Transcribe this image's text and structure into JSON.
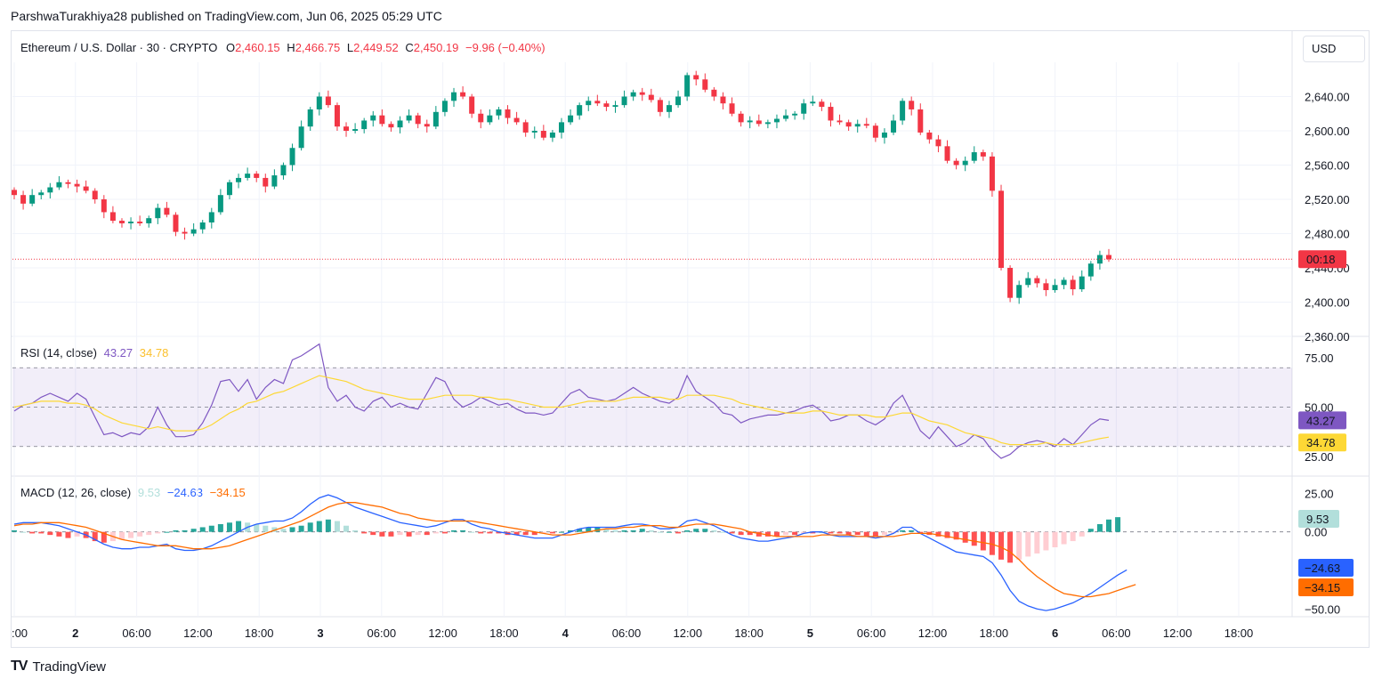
{
  "publisher_line": "ParshwaTurakhiya28 published on TradingView.com, Jun 06, 2025 05:29 UTC",
  "currency_button": "USD",
  "footer": {
    "logo": "TV",
    "brand": "TradingView"
  },
  "legend": {
    "symbol": "Ethereum / U.S. Dollar · 30 · CRYPTO",
    "open_label": "O",
    "open": "2,460.15",
    "high_label": "H",
    "high": "2,466.75",
    "low_label": "L",
    "low": "2,449.52",
    "close_label": "C",
    "close": "2,450.19",
    "change": "−9.96 (−0.40%)"
  },
  "price_tag": "00:18",
  "rsi_legend": {
    "title": "RSI (14, close)",
    "rsi": "43.27",
    "ma": "34.78"
  },
  "macd_legend": {
    "title": "MACD (12, 26, close)",
    "hist": "9.53",
    "macd": "−24.63",
    "signal": "−34.15"
  },
  "colors": {
    "up": "#089981",
    "down": "#f23645",
    "rsi_line": "#7e57c2",
    "rsi_ma": "#fdd835",
    "macd_line": "#2962ff",
    "signal_line": "#ff6d00",
    "rsi_band": "#7e57c2"
  },
  "chart_data": [
    {
      "type": "candlestick",
      "title": "Ethereum / U.S. Dollar · 30 · CRYPTO",
      "x_ticks": [
        ":00",
        "2",
        "06:00",
        "12:00",
        "18:00",
        "3",
        "06:00",
        "12:00",
        "18:00",
        "4",
        "06:00",
        "12:00",
        "18:00",
        "5",
        "06:00",
        "12:00",
        "18:00",
        "6",
        "06:00",
        "12:00",
        "18:00"
      ],
      "y_ticks": [
        "2,640.00",
        "2,600.00",
        "2,560.00",
        "2,520.00",
        "2,480.00",
        "2,440.00",
        "2,400.00",
        "2,360.00"
      ],
      "ylim": [
        2360,
        2680
      ],
      "last_price": 2450.19,
      "close_path": [
        2525,
        2515,
        2525,
        2528,
        2534,
        2540,
        2538,
        2535,
        2530,
        2520,
        2505,
        2495,
        2492,
        2494,
        2492,
        2498,
        2510,
        2502,
        2482,
        2480,
        2485,
        2493,
        2505,
        2525,
        2540,
        2545,
        2550,
        2545,
        2535,
        2548,
        2560,
        2580,
        2605,
        2625,
        2640,
        2630,
        2605,
        2600,
        2602,
        2612,
        2618,
        2608,
        2604,
        2612,
        2618,
        2608,
        2605,
        2622,
        2635,
        2645,
        2640,
        2620,
        2610,
        2618,
        2625,
        2615,
        2610,
        2598,
        2600,
        2592,
        2598,
        2610,
        2618,
        2630,
        2635,
        2632,
        2628,
        2630,
        2640,
        2645,
        2642,
        2636,
        2622,
        2630,
        2640,
        2665,
        2660,
        2648,
        2640,
        2632,
        2620,
        2610,
        2612,
        2608,
        2610,
        2614,
        2618,
        2620,
        2632,
        2634,
        2628,
        2612,
        2610,
        2605,
        2608,
        2606,
        2592,
        2598,
        2612,
        2635,
        2625,
        2598,
        2590,
        2582,
        2565,
        2560,
        2565,
        2575,
        2570,
        2530,
        2440,
        2405,
        2420,
        2428,
        2422,
        2414,
        2420,
        2426,
        2415,
        2430,
        2445,
        2455,
        2450
      ],
      "down_segments": [
        [
          104,
          112
        ],
        [
          139,
          150
        ],
        [
          174,
          184
        ],
        [
          190,
          207
        ]
      ]
    },
    {
      "type": "line",
      "title": "RSI (14, close)",
      "y_ticks": [
        "75.00",
        "50.00",
        "25.00"
      ],
      "ylim": [
        15,
        85
      ],
      "bands": [
        30,
        50,
        70
      ],
      "series": [
        {
          "name": "RSI",
          "values": [
            48,
            51,
            52,
            55,
            57,
            55,
            53,
            57,
            54,
            45,
            36,
            37,
            35,
            37,
            36,
            40,
            50,
            41,
            35,
            35,
            36,
            42,
            51,
            63,
            64,
            58,
            64,
            54,
            60,
            64,
            62,
            74,
            76,
            79,
            82,
            60,
            53,
            56,
            50,
            48,
            53,
            55,
            50,
            52,
            50,
            49,
            57,
            65,
            63,
            54,
            50,
            52,
            55,
            53,
            51,
            52,
            49,
            47,
            47,
            46,
            47,
            52,
            57,
            59,
            55,
            54,
            53,
            54,
            57,
            60,
            57,
            55,
            53,
            52,
            55,
            66,
            58,
            55,
            52,
            47,
            46,
            42,
            44,
            45,
            46,
            46,
            47,
            48,
            50,
            51,
            48,
            43,
            44,
            46,
            46,
            43,
            41,
            44,
            52,
            56,
            47,
            38,
            34,
            40,
            35,
            30,
            32,
            36,
            34,
            28,
            24,
            26,
            30,
            32,
            33,
            32,
            30,
            34,
            31,
            36,
            41,
            44,
            43.27
          ]
        },
        {
          "name": "RSI-based MA",
          "values": [
            50,
            51,
            52,
            53,
            53,
            53,
            52,
            52,
            51,
            49,
            46,
            44,
            42,
            41,
            40,
            39,
            40,
            39,
            38,
            38,
            38,
            39,
            41,
            44,
            47,
            49,
            52,
            53,
            55,
            57,
            58,
            60,
            62,
            64,
            66,
            65,
            64,
            63,
            61,
            59,
            58,
            57,
            56,
            55,
            54,
            54,
            54,
            55,
            56,
            56,
            56,
            56,
            55,
            55,
            54,
            54,
            53,
            52,
            51,
            50,
            50,
            50,
            51,
            52,
            53,
            53,
            53,
            53,
            54,
            55,
            55,
            55,
            55,
            54,
            54,
            56,
            56,
            56,
            56,
            55,
            54,
            52,
            51,
            50,
            49,
            48,
            47,
            47,
            47,
            48,
            48,
            47,
            46,
            46,
            46,
            46,
            45,
            45,
            46,
            47,
            47,
            45,
            43,
            42,
            41,
            39,
            37,
            36,
            35,
            34,
            32,
            31,
            31,
            31,
            31,
            32,
            31,
            31,
            31,
            32,
            33,
            34,
            34.78
          ]
        }
      ]
    },
    {
      "type": "line+bar",
      "title": "MACD (12, 26, close)",
      "y_ticks": [
        "25.00",
        "0.00",
        "−50.00"
      ],
      "ylim": [
        -55,
        35
      ],
      "series": [
        {
          "name": "Histogram",
          "values": [
            1,
            0,
            -1,
            -1,
            -2,
            -3,
            -4,
            -3,
            -4,
            -6,
            -7,
            -6,
            -5,
            -4,
            -3,
            -2,
            -1,
            0,
            1,
            1,
            2,
            3,
            4,
            5,
            6,
            7,
            6,
            5,
            4,
            3,
            2,
            3,
            4,
            6,
            7,
            8,
            7,
            4,
            1,
            -1,
            -2,
            -3,
            -3,
            -2,
            -3,
            -2,
            -2,
            -1,
            -1,
            1,
            1,
            0,
            -1,
            -1,
            -1,
            -2,
            -2,
            -2,
            -2,
            -1,
            -1,
            0,
            1,
            2,
            3,
            3,
            2,
            1,
            1,
            1,
            2,
            1,
            0,
            0,
            -1,
            1,
            2,
            2,
            1,
            0,
            -1,
            -2,
            -2,
            -3,
            -3,
            -3,
            -2,
            -2,
            -1,
            -1,
            0,
            -1,
            -1,
            -2,
            -2,
            -3,
            -3,
            -2,
            -1,
            1,
            1,
            -1,
            -2,
            -3,
            -4,
            -5,
            -7,
            -9,
            -12,
            -15,
            -18,
            -20,
            -18,
            -16,
            -14,
            -12,
            -10,
            -8,
            -6,
            -3,
            2,
            5,
            8,
            9.53
          ]
        },
        {
          "name": "MACD",
          "values": [
            5,
            6,
            6,
            6,
            5,
            4,
            2,
            0,
            -2,
            -5,
            -8,
            -10,
            -11,
            -11,
            -10,
            -10,
            -9,
            -8,
            -11,
            -12,
            -12,
            -11,
            -9,
            -6,
            -3,
            0,
            3,
            5,
            6,
            7,
            7,
            9,
            13,
            18,
            22,
            24,
            22,
            19,
            16,
            14,
            12,
            10,
            8,
            6,
            5,
            4,
            3,
            4,
            6,
            8,
            8,
            5,
            3,
            2,
            0,
            -1,
            -2,
            -3,
            -4,
            -4,
            -4,
            -2,
            0,
            2,
            3,
            3,
            3,
            3,
            4,
            5,
            5,
            4,
            2,
            2,
            3,
            7,
            8,
            6,
            4,
            1,
            -2,
            -4,
            -5,
            -6,
            -6,
            -5,
            -4,
            -3,
            -1,
            0,
            0,
            -2,
            -3,
            -3,
            -3,
            -3,
            -4,
            -3,
            -1,
            3,
            3,
            -1,
            -4,
            -7,
            -10,
            -13,
            -14,
            -15,
            -16,
            -20,
            -28,
            -38,
            -45,
            -48,
            -50,
            -51,
            -50,
            -48,
            -46,
            -43,
            -40,
            -36,
            -32,
            -28,
            -24.63
          ]
        },
        {
          "name": "Signal",
          "values": [
            4,
            5,
            5,
            6,
            6,
            6,
            5,
            4,
            3,
            1,
            -1,
            -3,
            -5,
            -6,
            -7,
            -8,
            -9,
            -9,
            -9,
            -10,
            -11,
            -11,
            -11,
            -10,
            -9,
            -7,
            -5,
            -3,
            -1,
            1,
            3,
            5,
            7,
            10,
            13,
            16,
            18,
            19,
            19,
            18,
            17,
            16,
            14,
            12,
            11,
            9,
            8,
            7,
            7,
            7,
            7,
            7,
            6,
            5,
            4,
            3,
            2,
            1,
            0,
            -1,
            -2,
            -2,
            -2,
            -1,
            0,
            1,
            2,
            2,
            3,
            3,
            4,
            4,
            4,
            3,
            3,
            4,
            5,
            5,
            5,
            4,
            3,
            2,
            0,
            -1,
            -2,
            -3,
            -3,
            -3,
            -3,
            -3,
            -2,
            -2,
            -2,
            -2,
            -3,
            -3,
            -3,
            -3,
            -3,
            -2,
            -1,
            -1,
            -1,
            -2,
            -3,
            -4,
            -5,
            -6,
            -7,
            -8,
            -10,
            -13,
            -18,
            -24,
            -29,
            -33,
            -37,
            -40,
            -41,
            -42,
            -42,
            -41,
            -40,
            -38,
            -36,
            -34.15
          ]
        }
      ]
    }
  ]
}
